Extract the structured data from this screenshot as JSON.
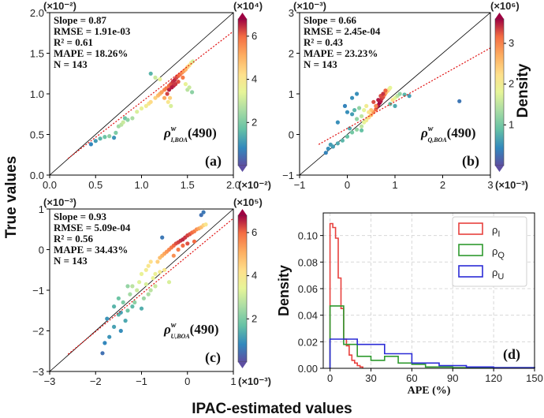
{
  "figure": {
    "ylabel": "True values",
    "xlabel": "IPAC-estimated values",
    "colorbar_label": "Density"
  },
  "chart_data": [
    {
      "type": "scatter",
      "panel": "(a)",
      "symbol": "ρ",
      "subscript": "I,BOA",
      "superscript": "w",
      "band": "(490)",
      "x_scale": "(×10⁻²)",
      "y_scale": "(×10⁻²)",
      "cbar_scale": "(×10⁴)",
      "xlim": [
        0,
        2.0
      ],
      "ylim": [
        0,
        2.0
      ],
      "xticks": [
        "0.0",
        "0.5",
        "1.0",
        "1.5",
        "2.0"
      ],
      "yticks": [
        "0.0",
        "0.5",
        "1.0",
        "1.5",
        "2.0"
      ],
      "cbar_range": [
        0,
        6.8
      ],
      "cbar_ticks": [
        "2",
        "4",
        "6"
      ],
      "stats": [
        "Slope = 0.87",
        "RMSE = 1.91e-03",
        "R² = 0.61",
        "MAPE = 18.26%",
        "N = 143"
      ],
      "fit": {
        "slope": 0.87,
        "intercept": 0.03
      },
      "points": [
        [
          0.45,
          0.38
        ],
        [
          0.5,
          0.42
        ],
        [
          0.55,
          0.45
        ],
        [
          0.6,
          0.47
        ],
        [
          0.65,
          0.48
        ],
        [
          0.7,
          0.46
        ],
        [
          0.72,
          0.52
        ],
        [
          0.75,
          0.6
        ],
        [
          0.78,
          0.62
        ],
        [
          0.8,
          0.65
        ],
        [
          0.82,
          0.7
        ],
        [
          0.85,
          0.68
        ],
        [
          0.9,
          0.7
        ],
        [
          0.95,
          0.78
        ],
        [
          1.0,
          0.82
        ],
        [
          1.05,
          0.85
        ],
        [
          1.08,
          0.88
        ],
        [
          1.1,
          0.9
        ],
        [
          1.15,
          0.95
        ],
        [
          1.18,
          0.98
        ],
        [
          1.2,
          1.0
        ],
        [
          1.22,
          1.02
        ],
        [
          1.25,
          1.05
        ],
        [
          1.27,
          1.07
        ],
        [
          1.3,
          1.1
        ],
        [
          1.32,
          1.12
        ],
        [
          1.34,
          1.15
        ],
        [
          1.36,
          1.17
        ],
        [
          1.38,
          1.2
        ],
        [
          1.4,
          1.22
        ],
        [
          1.42,
          1.24
        ],
        [
          1.44,
          1.26
        ],
        [
          1.46,
          1.28
        ],
        [
          1.48,
          1.3
        ],
        [
          1.5,
          1.33
        ],
        [
          1.52,
          1.35
        ],
        [
          1.54,
          1.38
        ],
        [
          1.56,
          1.4
        ],
        [
          1.3,
          1.05
        ],
        [
          1.28,
          1.0
        ],
        [
          1.35,
          1.1
        ],
        [
          1.4,
          1.15
        ],
        [
          1.45,
          1.2
        ],
        [
          1.33,
          1.08
        ],
        [
          1.37,
          1.12
        ],
        [
          1.31,
          0.95
        ],
        [
          1.29,
          0.9
        ],
        [
          1.32,
          0.85
        ],
        [
          1.25,
          0.95
        ],
        [
          1.2,
          1.18
        ],
        [
          1.15,
          1.2
        ],
        [
          1.1,
          1.25
        ],
        [
          1.5,
          1.05
        ],
        [
          1.55,
          1.02
        ],
        [
          1.52,
          1.08
        ],
        [
          1.48,
          1.12
        ]
      ],
      "densities": [
        0.8,
        1.1,
        1.5,
        1.8,
        2.2,
        1.0,
        2.0,
        2.5,
        2.8,
        3.0,
        1.8,
        2.2,
        2.6,
        3.2,
        3.5,
        3.8,
        4.0,
        4.3,
        4.5,
        4.8,
        5.0,
        5.3,
        5.6,
        5.8,
        6.0,
        6.2,
        6.4,
        6.5,
        6.3,
        6.1,
        5.9,
        5.6,
        5.3,
        5.0,
        4.6,
        4.2,
        3.8,
        3.2,
        6.6,
        6.3,
        6.5,
        6.2,
        5.8,
        6.6,
        6.4,
        4.5,
        4.0,
        3.2,
        5.2,
        3.5,
        3.0,
        1.5,
        2.8,
        2.2,
        3.0,
        3.5
      ]
    },
    {
      "type": "scatter",
      "panel": "(b)",
      "symbol": "ρ",
      "subscript": "Q,BOA",
      "superscript": "w",
      "band": "(490)",
      "x_scale": "(×10⁻³)",
      "y_scale": "(×10⁻³)",
      "cbar_scale": "(×10⁶)",
      "xlim": [
        -1,
        3
      ],
      "ylim": [
        -1,
        3
      ],
      "xticks": [
        "−1",
        "0",
        "1",
        "2",
        "3"
      ],
      "yticks": [
        "−1",
        "0",
        "1",
        "2",
        "3"
      ],
      "cbar_range": [
        0,
        3.6
      ],
      "cbar_ticks": [
        "1",
        "2",
        "3"
      ],
      "stats": [
        "Slope = 0.66",
        "RMSE = 2.45e-04",
        "R² = 0.43",
        "MAPE = 23.23%",
        "N = 143"
      ],
      "fit": {
        "slope": 0.66,
        "intercept": 0.15
      },
      "points": [
        [
          -0.45,
          -0.45
        ],
        [
          -0.4,
          -0.35
        ],
        [
          -0.3,
          -0.3
        ],
        [
          -0.2,
          -0.22
        ],
        [
          -0.1,
          -0.15
        ],
        [
          0.0,
          -0.05
        ],
        [
          0.1,
          0.05
        ],
        [
          0.2,
          0.12
        ],
        [
          0.3,
          0.2
        ],
        [
          0.35,
          0.3
        ],
        [
          0.4,
          0.35
        ],
        [
          0.45,
          0.42
        ],
        [
          0.5,
          0.48
        ],
        [
          0.55,
          0.55
        ],
        [
          0.6,
          0.62
        ],
        [
          0.62,
          0.68
        ],
        [
          0.65,
          0.72
        ],
        [
          0.68,
          0.78
        ],
        [
          0.7,
          0.82
        ],
        [
          0.72,
          0.88
        ],
        [
          0.75,
          0.92
        ],
        [
          0.78,
          0.98
        ],
        [
          0.8,
          1.02
        ],
        [
          0.82,
          1.05
        ],
        [
          0.85,
          1.08
        ],
        [
          0.88,
          1.12
        ],
        [
          0.9,
          1.15
        ],
        [
          0.7,
          0.95
        ],
        [
          0.75,
          1.0
        ],
        [
          0.8,
          1.08
        ],
        [
          0.65,
          0.85
        ],
        [
          0.6,
          0.7
        ],
        [
          0.55,
          0.8
        ],
        [
          0.5,
          0.6
        ],
        [
          0.45,
          0.55
        ],
        [
          0.3,
          0.45
        ],
        [
          0.2,
          0.38
        ],
        [
          0.1,
          0.5
        ],
        [
          0.0,
          0.55
        ],
        [
          -0.05,
          0.7
        ],
        [
          0.1,
          0.9
        ],
        [
          0.2,
          1.0
        ],
        [
          0.15,
          0.6
        ],
        [
          0.35,
          0.6
        ],
        [
          0.4,
          0.7
        ],
        [
          0.95,
          0.85
        ],
        [
          1.0,
          0.9
        ],
        [
          1.05,
          0.95
        ],
        [
          1.1,
          1.0
        ],
        [
          1.2,
          0.98
        ],
        [
          1.3,
          0.95
        ],
        [
          0.9,
          0.75
        ],
        [
          1.0,
          0.7
        ],
        [
          2.35,
          0.82
        ],
        [
          -0.2,
          0.3
        ],
        [
          0.25,
          0.65
        ],
        [
          -0.35,
          -0.25
        ],
        [
          0.3,
          0.1
        ],
        [
          0.05,
          0.15
        ]
      ],
      "densities": [
        0.4,
        0.5,
        0.6,
        0.7,
        0.8,
        0.9,
        1.0,
        1.2,
        1.5,
        1.8,
        2.0,
        2.3,
        2.6,
        2.9,
        3.2,
        3.4,
        3.5,
        3.6,
        3.5,
        3.4,
        3.3,
        3.1,
        2.9,
        2.7,
        2.4,
        2.1,
        1.8,
        3.3,
        3.4,
        3.2,
        3.5,
        3.0,
        3.3,
        2.5,
        2.2,
        1.5,
        1.2,
        0.6,
        0.5,
        0.4,
        0.5,
        0.5,
        0.8,
        1.8,
        2.0,
        2.2,
        1.8,
        1.5,
        1.2,
        0.8,
        0.6,
        0.9,
        0.7,
        0.3,
        0.5,
        1.2,
        0.6,
        0.9,
        0.7
      ]
    },
    {
      "type": "scatter",
      "panel": "(c)",
      "symbol": "ρ",
      "subscript": "U,BOA",
      "superscript": "w",
      "band": "(490)",
      "x_scale": "(×10⁻³)",
      "y_scale": "(×10⁻³)",
      "cbar_scale": "(×10⁵)",
      "xlim": [
        -3,
        1
      ],
      "ylim": [
        -3,
        1
      ],
      "xticks": [
        "−3",
        "−2",
        "−1",
        "0",
        "1"
      ],
      "yticks": [
        "−3",
        "−2",
        "−1",
        "0",
        "1"
      ],
      "cbar_range": [
        0,
        6.8
      ],
      "cbar_ticks": [
        "2",
        "4",
        "6"
      ],
      "stats": [
        "Slope = 0.93",
        "RMSE = 5.09e-04",
        "R² = 0.56",
        "MAPE = 34.43%",
        "N = 143"
      ],
      "fit": {
        "slope": 0.93,
        "intercept": -0.16
      },
      "points": [
        [
          -1.85,
          -2.55
        ],
        [
          -1.8,
          -2.3
        ],
        [
          -1.7,
          -2.15
        ],
        [
          -1.6,
          -1.9
        ],
        [
          -1.5,
          -1.6
        ],
        [
          -1.45,
          -2.0
        ],
        [
          -1.4,
          -1.3
        ],
        [
          -1.35,
          -1.75
        ],
        [
          -1.3,
          -1.5
        ],
        [
          -1.25,
          -1.1
        ],
        [
          -1.2,
          -0.9
        ],
        [
          -1.15,
          -1.3
        ],
        [
          -1.1,
          -1.0
        ],
        [
          -1.05,
          -0.8
        ],
        [
          -1.0,
          -0.6
        ],
        [
          -0.95,
          -1.2
        ],
        [
          -0.9,
          -0.5
        ],
        [
          -0.85,
          -0.4
        ],
        [
          -0.8,
          -0.3
        ],
        [
          -0.75,
          -0.7
        ],
        [
          -0.7,
          -0.9
        ],
        [
          -0.65,
          -0.3
        ],
        [
          -0.6,
          -0.2
        ],
        [
          -0.55,
          -0.15
        ],
        [
          -0.5,
          -0.1
        ],
        [
          -0.45,
          -0.05
        ],
        [
          -0.4,
          0.0
        ],
        [
          -0.35,
          0.05
        ],
        [
          -0.3,
          0.1
        ],
        [
          -0.25,
          0.15
        ],
        [
          -0.2,
          0.18
        ],
        [
          -0.15,
          0.22
        ],
        [
          -0.1,
          0.25
        ],
        [
          -0.05,
          0.3
        ],
        [
          0.0,
          0.35
        ],
        [
          0.05,
          0.38
        ],
        [
          0.1,
          0.42
        ],
        [
          0.15,
          0.45
        ],
        [
          0.2,
          0.5
        ],
        [
          0.25,
          0.52
        ],
        [
          0.3,
          0.55
        ],
        [
          0.35,
          0.6
        ],
        [
          0.4,
          0.62
        ],
        [
          -0.9,
          -0.85
        ],
        [
          -0.8,
          -1.0
        ],
        [
          -0.7,
          -0.6
        ],
        [
          -0.6,
          -0.55
        ],
        [
          -0.5,
          -0.5
        ],
        [
          -1.5,
          -1.2
        ],
        [
          -1.6,
          -1.4
        ],
        [
          -1.3,
          -0.9
        ],
        [
          -1.2,
          -1.4
        ],
        [
          -1.0,
          -1.45
        ],
        [
          -0.85,
          -1.1
        ],
        [
          -0.3,
          -0.15
        ],
        [
          -0.2,
          0.0
        ],
        [
          -0.1,
          0.1
        ],
        [
          0.0,
          0.15
        ],
        [
          0.15,
          0.2
        ],
        [
          -0.55,
          0.3
        ],
        [
          -0.4,
          -0.8
        ],
        [
          -1.75,
          -1.7
        ],
        [
          -1.45,
          -1.55
        ],
        [
          0.3,
          0.85
        ],
        [
          0.35,
          0.92
        ]
      ],
      "densities": [
        0.5,
        0.8,
        1.0,
        1.2,
        1.5,
        0.9,
        2.0,
        1.3,
        1.8,
        2.5,
        2.8,
        2.2,
        3.0,
        3.3,
        3.5,
        2.4,
        3.8,
        4.0,
        4.2,
        3.5,
        3.0,
        4.5,
        4.8,
        5.0,
        5.2,
        5.4,
        5.6,
        5.8,
        6.0,
        6.2,
        6.3,
        6.4,
        6.5,
        6.4,
        6.3,
        6.2,
        6.0,
        5.8,
        5.5,
        5.2,
        4.8,
        4.5,
        4.0,
        3.2,
        2.8,
        3.6,
        3.8,
        4.0,
        1.8,
        1.5,
        2.3,
        1.6,
        1.4,
        2.6,
        5.5,
        5.8,
        6.0,
        6.2,
        6.0,
        0.6,
        3.2,
        1.0,
        1.2,
        0.5,
        0.6
      ]
    },
    {
      "type": "histogram",
      "panel": "(d)",
      "xlabel": "APE (%)",
      "ylabel": "Density",
      "xlim": [
        -5,
        150
      ],
      "ylim": [
        0,
        0.117
      ],
      "xticks": [
        "0",
        "30",
        "60",
        "90",
        "120",
        "150"
      ],
      "yticks": [
        "0.00",
        "0.02",
        "0.04",
        "0.06",
        "0.08",
        "0.10"
      ],
      "grid": true,
      "legend_position": "top-right",
      "series": [
        {
          "name": "ρ",
          "sub": "I",
          "color": "#e8413e",
          "edges": [
            0,
            2,
            4,
            6,
            8,
            10,
            12,
            14,
            16,
            18,
            20,
            22,
            24
          ],
          "values": [
            0.109,
            0.106,
            0.098,
            0.068,
            0.045,
            0.022,
            0.017,
            0.01,
            0.006,
            0.004,
            0.002,
            0.001
          ]
        },
        {
          "name": "ρ",
          "sub": "Q",
          "color": "#2f9a2f",
          "edges": [
            0,
            10,
            20,
            30,
            40,
            50,
            60,
            70,
            80,
            90,
            100,
            110,
            120,
            130,
            140,
            150
          ],
          "values": [
            0.047,
            0.018,
            0.009,
            0.006,
            0.009,
            0.004,
            0.003,
            0.001,
            0.001,
            0.0005,
            0.0005,
            0.0005,
            0.0005,
            0.0005,
            0.0005
          ]
        },
        {
          "name": "ρ",
          "sub": "U",
          "color": "#2b2bd6",
          "edges": [
            0,
            20,
            40,
            60,
            80,
            100,
            120,
            140,
            150
          ],
          "values": [
            0.022,
            0.018,
            0.011,
            0.004,
            0.002,
            0.001,
            0.0005,
            0.0005
          ]
        }
      ]
    }
  ]
}
